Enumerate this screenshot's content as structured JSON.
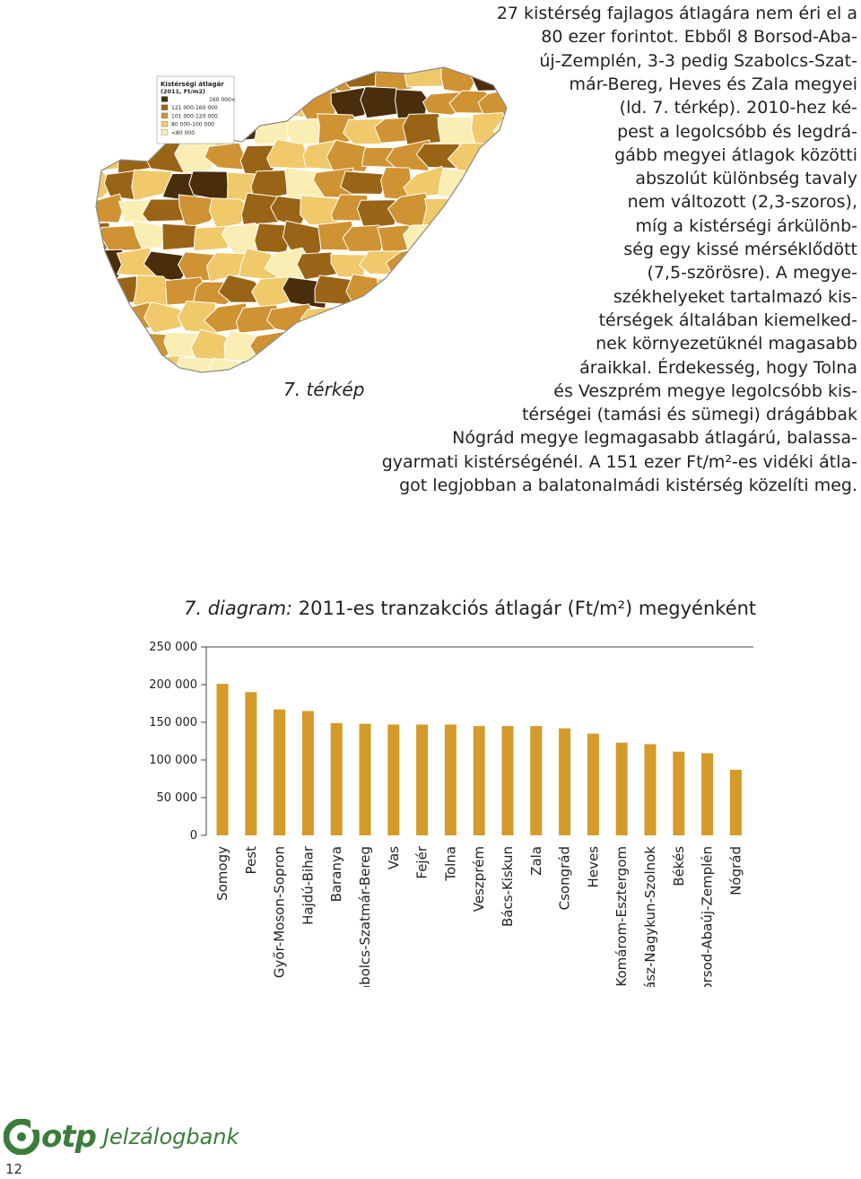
{
  "paragraph_lines": [
    "27 kistérség fajlagos átlagára nem éri el a",
    "80 ezer forintot. Ebből 8 Borsod-Aba-",
    "új-Zemplén, 3-3 pedig Szabolcs-Szat-",
    "már-Bereg, Heves és Zala megyei",
    "(ld. 7. térkép). 2010-hez ké-",
    "pest a legolcsóbb és legdrá-",
    "gább megyei átlagok közötti",
    "abszolút különbség tavaly",
    "nem változott (2,3-szoros),",
    "míg a kistérségi árkülönb-",
    "ség egy kissé mérséklődött",
    "(7,5-szörösre). A megye-",
    "székhelyeket tartalmazó kis-",
    "térségek általában kiemelked-",
    "nek környezetüknél magasabb",
    "áraikkal. Érdekesség, hogy Tolna",
    "és Veszprém megye legolcsóbb kis-",
    "térségei (tamási és sümegi) drágábbak",
    "Nógrád megye legmagasabb átlagárú, balassa-",
    "gyarmati kistérségénél. A 151 ezer Ft/m²-es vidéki átla-",
    "got legjobban a balatonalmádi kistérség közelíti meg."
  ],
  "map": {
    "caption": "7. térkép",
    "legend_title": "Kistérségi átlagár",
    "legend_subtitle": "(2011, Ft/m2)",
    "legend_items": [
      {
        "label": "160 000<",
        "color": "#4a2e0c"
      },
      {
        "label": "121 000-160 000",
        "color": "#9a6416"
      },
      {
        "label": "101 000-120 000",
        "color": "#cf9333"
      },
      {
        "label": "80 000-100 000",
        "color": "#f0c96a"
      },
      {
        "label": "<80 000",
        "color": "#faeeb4"
      }
    ]
  },
  "chart": {
    "title_italic": "7. diagram:",
    "title_rest": " 2011-es tranzakciós átlagár (Ft/m²) megyénként"
  },
  "chart_data": {
    "type": "bar",
    "categories": [
      "Somogy",
      "Pest",
      "Győr-Moson-Sopron",
      "Hajdú-Bihar",
      "Baranya",
      "Szabolcs-Szatmár-Bereg",
      "Vas",
      "Fejér",
      "Tolna",
      "Veszprém",
      "Bács-Kiskun",
      "Zala",
      "Csongrád",
      "Heves",
      "Komárom-Esztergom",
      "Jász-Nagykun-Szolnok",
      "Békés",
      "Borsod-Abaúj-Zemplén",
      "Nógrád"
    ],
    "values": [
      201000,
      190000,
      167000,
      165000,
      149000,
      148000,
      147000,
      147000,
      147000,
      145000,
      145000,
      145000,
      142000,
      135000,
      123000,
      121000,
      111000,
      109000,
      87000
    ],
    "yticks": [
      "250 000",
      "200 000",
      "150 000",
      "100 000",
      "50 000",
      "0"
    ],
    "ylim": [
      0,
      250000
    ],
    "bar_color": "#d49a2a"
  },
  "footer": {
    "logo_text": "otp",
    "logo_sub": "Jelzálogbank",
    "page_number": "12"
  }
}
